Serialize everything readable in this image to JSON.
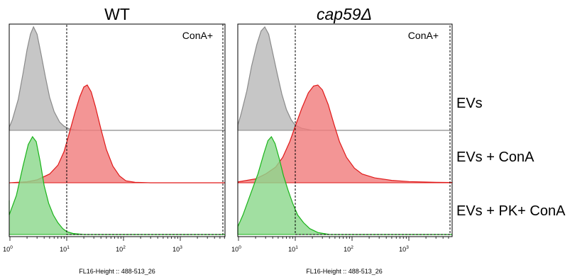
{
  "chart_data": [
    {
      "type": "area",
      "title": "WT",
      "title_italic": false,
      "xlabel": "FL16-Height :: 488-513_26",
      "x_scale": "log",
      "xlim": [
        0.7,
        8000
      ],
      "x_ticks": [
        "10^0",
        "10^1",
        "10^2",
        "10^3"
      ],
      "gate": {
        "label": "ConA+",
        "from": 10
      },
      "series": [
        {
          "name": "EVs",
          "color": "#b9b9b9",
          "line_color": "#8a8a8a",
          "points": [
            [
              0.72,
              0.0
            ],
            [
              0.9,
              0.03
            ],
            [
              1.1,
              0.1
            ],
            [
              1.4,
              0.3
            ],
            [
              1.7,
              0.55
            ],
            [
              2.0,
              0.78
            ],
            [
              2.3,
              0.93
            ],
            [
              2.6,
              1.0
            ],
            [
              3.0,
              0.93
            ],
            [
              3.5,
              0.75
            ],
            [
              4.2,
              0.52
            ],
            [
              5.0,
              0.32
            ],
            [
              6.0,
              0.18
            ],
            [
              7.5,
              0.08
            ],
            [
              9.0,
              0.04
            ],
            [
              11.0,
              0.015
            ],
            [
              14.0,
              0.005
            ],
            [
              20.0,
              0.0
            ],
            [
              8000,
              0.0
            ]
          ]
        },
        {
          "name": "EVs + ConA",
          "color": "#f07e7e",
          "line_color": "#e01818",
          "points": [
            [
              0.72,
              0.0
            ],
            [
              1.0,
              0.0
            ],
            [
              2.0,
              0.01
            ],
            [
              3.0,
              0.03
            ],
            [
              5.0,
              0.09
            ],
            [
              7.0,
              0.18
            ],
            [
              9.0,
              0.32
            ],
            [
              11.0,
              0.5
            ],
            [
              14.0,
              0.72
            ],
            [
              17.0,
              0.88
            ],
            [
              20.0,
              0.98
            ],
            [
              23.0,
              1.0
            ],
            [
              27.0,
              0.93
            ],
            [
              32.0,
              0.78
            ],
            [
              40.0,
              0.55
            ],
            [
              50.0,
              0.34
            ],
            [
              65.0,
              0.17
            ],
            [
              85.0,
              0.07
            ],
            [
              110.0,
              0.02
            ],
            [
              160.0,
              0.005
            ],
            [
              300.0,
              0.0
            ],
            [
              8000,
              0.0
            ]
          ]
        },
        {
          "name": "EVs + PK+ ConA",
          "color": "#8cd88c",
          "line_color": "#19b319",
          "points": [
            [
              0.72,
              0.35
            ],
            [
              0.8,
              0.2
            ],
            [
              1.0,
              0.22
            ],
            [
              1.3,
              0.4
            ],
            [
              1.7,
              0.7
            ],
            [
              2.1,
              0.92
            ],
            [
              2.5,
              1.0
            ],
            [
              2.9,
              0.95
            ],
            [
              3.4,
              0.75
            ],
            [
              4.0,
              0.5
            ],
            [
              4.8,
              0.32
            ],
            [
              5.8,
              0.2
            ],
            [
              7.0,
              0.12
            ],
            [
              8.5,
              0.06
            ],
            [
              10.0,
              0.03
            ],
            [
              13.0,
              0.01
            ],
            [
              20.0,
              0.0
            ],
            [
              8000,
              0.0
            ]
          ]
        }
      ]
    },
    {
      "type": "area",
      "title": "cap59Δ",
      "title_italic": true,
      "xlabel": "FL16-Height :: 488-513_26",
      "x_scale": "log",
      "xlim": [
        0.7,
        8000
      ],
      "x_ticks": [
        "10^0",
        "10^1",
        "10^2",
        "10^3"
      ],
      "gate": {
        "label": "ConA+",
        "from": 10
      },
      "series": [
        {
          "name": "EVs",
          "color": "#b9b9b9",
          "line_color": "#8a8a8a",
          "points": [
            [
              0.72,
              0.0
            ],
            [
              0.9,
              0.05
            ],
            [
              1.1,
              0.15
            ],
            [
              1.4,
              0.38
            ],
            [
              1.7,
              0.62
            ],
            [
              2.1,
              0.83
            ],
            [
              2.5,
              0.96
            ],
            [
              2.9,
              1.0
            ],
            [
              3.4,
              0.93
            ],
            [
              4.0,
              0.75
            ],
            [
              4.8,
              0.55
            ],
            [
              5.8,
              0.35
            ],
            [
              7.0,
              0.2
            ],
            [
              8.5,
              0.1
            ],
            [
              10.0,
              0.05
            ],
            [
              13.0,
              0.02
            ],
            [
              20.0,
              0.0
            ],
            [
              8000,
              0.0
            ]
          ]
        },
        {
          "name": "EVs + ConA",
          "color": "#f07e7e",
          "line_color": "#e01818",
          "points": [
            [
              0.72,
              0.0
            ],
            [
              1.0,
              0.01
            ],
            [
              2.0,
              0.04
            ],
            [
              3.0,
              0.09
            ],
            [
              4.5,
              0.16
            ],
            [
              6.0,
              0.26
            ],
            [
              8.0,
              0.42
            ],
            [
              10.0,
              0.58
            ],
            [
              13.0,
              0.76
            ],
            [
              17.0,
              0.92
            ],
            [
              21.0,
              0.99
            ],
            [
              25.0,
              1.0
            ],
            [
              30.0,
              0.95
            ],
            [
              38.0,
              0.8
            ],
            [
              48.0,
              0.6
            ],
            [
              60.0,
              0.42
            ],
            [
              80.0,
              0.26
            ],
            [
              110.0,
              0.15
            ],
            [
              150.0,
              0.09
            ],
            [
              250.0,
              0.05
            ],
            [
              500.0,
              0.025
            ],
            [
              1000.0,
              0.012
            ],
            [
              3000.0,
              0.005
            ],
            [
              7800.0,
              0.003
            ],
            [
              8000,
              0.0
            ]
          ]
        },
        {
          "name": "EVs + PK+ ConA",
          "color": "#8cd88c",
          "line_color": "#19b319",
          "points": [
            [
              0.72,
              0.0
            ],
            [
              0.9,
              0.08
            ],
            [
              1.2,
              0.2
            ],
            [
              1.6,
              0.4
            ],
            [
              2.2,
              0.62
            ],
            [
              2.8,
              0.83
            ],
            [
              3.3,
              0.96
            ],
            [
              3.8,
              1.0
            ],
            [
              4.4,
              0.93
            ],
            [
              5.2,
              0.78
            ],
            [
              6.2,
              0.6
            ],
            [
              7.5,
              0.45
            ],
            [
              9.0,
              0.32
            ],
            [
              11.0,
              0.2
            ],
            [
              14.0,
              0.12
            ],
            [
              18.0,
              0.06
            ],
            [
              25.0,
              0.02
            ],
            [
              40.0,
              0.0
            ],
            [
              8000,
              0.0
            ]
          ]
        }
      ]
    }
  ],
  "row_labels": [
    "EVs",
    "EVs + ConA",
    "EVs + PK+ ConA"
  ]
}
